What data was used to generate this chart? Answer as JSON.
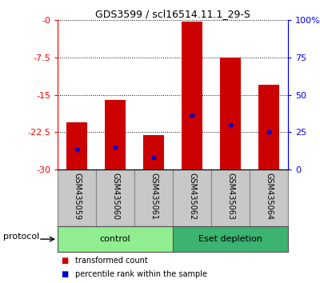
{
  "title": "GDS3599 / scl16514.11.1_29-S",
  "samples": [
    "GSM435059",
    "GSM435060",
    "GSM435061",
    "GSM435062",
    "GSM435063",
    "GSM435064"
  ],
  "bar_tops": [
    -20.5,
    -16.0,
    -23.0,
    -0.3,
    -7.5,
    -13.0
  ],
  "bar_bottom": -30,
  "blue_marker_y": [
    -26.0,
    -25.5,
    -27.5,
    -19.0,
    -21.0,
    -22.5
  ],
  "ylim_left": [
    -30,
    0
  ],
  "yticks_left": [
    -30,
    -22.5,
    -15,
    -7.5,
    0
  ],
  "ytick_labels_left": [
    "-30",
    "-22.5",
    "-15",
    "-7.5",
    "-0"
  ],
  "yticks_right": [
    0,
    25,
    50,
    75,
    100
  ],
  "ytick_labels_right": [
    "0",
    "25",
    "50",
    "75",
    "100%"
  ],
  "groups": [
    {
      "label": "control",
      "indices": [
        0,
        1,
        2
      ],
      "color": "#90EE90"
    },
    {
      "label": "Eset depletion",
      "indices": [
        3,
        4,
        5
      ],
      "color": "#3CB371"
    }
  ],
  "bar_color": "#CC0000",
  "blue_color": "#0000CC",
  "protocol_label": "protocol",
  "legend_red": "transformed count",
  "legend_blue": "percentile rank within the sample",
  "cell_bg": "#C8C8C8",
  "cell_edge": "#888888"
}
